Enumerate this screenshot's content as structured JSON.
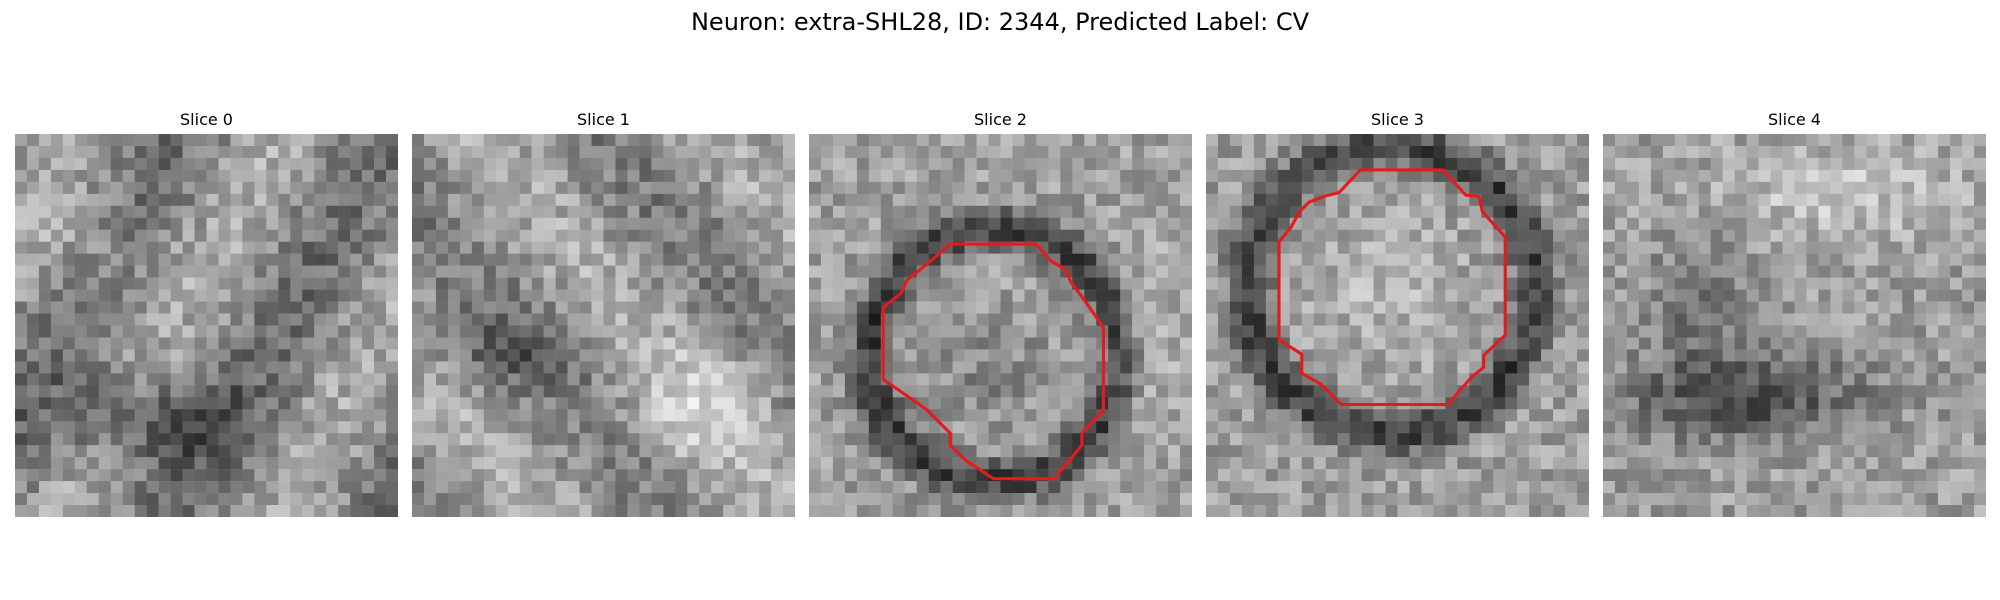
{
  "figure": {
    "title": "Neuron: extra-SHL28, ID: 2344, Predicted Label: CV"
  },
  "slices": [
    {
      "title": "Slice 0",
      "has_contour": false
    },
    {
      "title": "Slice 1",
      "has_contour": false
    },
    {
      "title": "Slice 2",
      "has_contour": true
    },
    {
      "title": "Slice 3",
      "has_contour": true
    },
    {
      "title": "Slice 4",
      "has_contour": false
    }
  ],
  "colors": {
    "contour": "#e41a1c",
    "background": "#ffffff"
  },
  "colormap": "grayscale"
}
